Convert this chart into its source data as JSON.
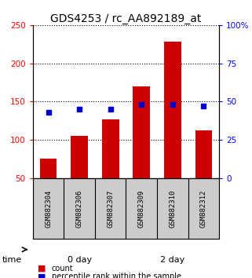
{
  "title": "GDS4253 / rc_AA892189_at",
  "categories": [
    "GSM882304",
    "GSM882306",
    "GSM882307",
    "GSM882309",
    "GSM882310",
    "GSM882312"
  ],
  "counts": [
    75,
    105,
    127,
    170,
    228,
    112
  ],
  "percentiles": [
    43,
    45,
    45,
    48,
    48,
    47
  ],
  "left_ylim": [
    50,
    250
  ],
  "left_yticks": [
    50,
    100,
    150,
    200,
    250
  ],
  "right_ylim": [
    0,
    100
  ],
  "right_yticks": [
    0,
    25,
    50,
    75,
    100
  ],
  "bar_color": "#cc0000",
  "percentile_color": "#0000cc",
  "bar_bottom": 50,
  "groups": [
    {
      "label": "0 day",
      "indices": [
        0,
        1,
        2
      ],
      "color": "#bbffbb"
    },
    {
      "label": "2 day",
      "indices": [
        3,
        4,
        5
      ],
      "color": "#33cc33"
    }
  ],
  "time_label": "time",
  "background_color": "#ffffff",
  "plot_bg_color": "#ffffff",
  "sample_label_bg": "#cccccc",
  "legend_count_label": "count",
  "legend_pct_label": "percentile rank within the sample",
  "title_fontsize": 10,
  "tick_fontsize": 7.5,
  "label_fontsize": 7
}
